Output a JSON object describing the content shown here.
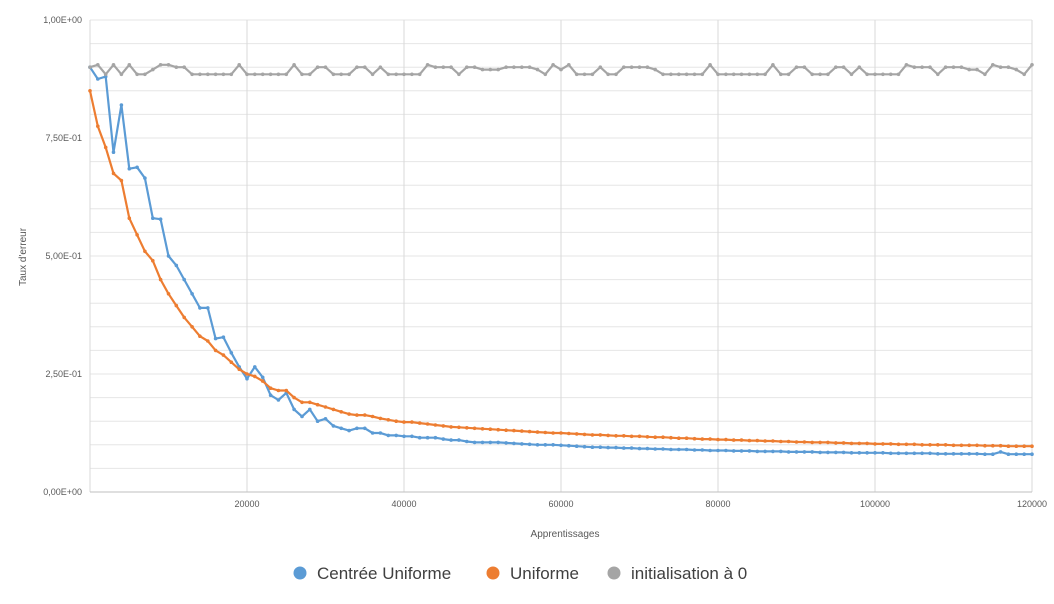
{
  "chart_data": {
    "type": "line",
    "title": "",
    "xlabel": "Apprentissages",
    "ylabel": "Taux d'erreur",
    "xlim": [
      0,
      120000
    ],
    "ylim": [
      0,
      1
    ],
    "grid": true,
    "legend_position": "bottom",
    "x_ticks": [
      {
        "value": 20000,
        "label": "20000"
      },
      {
        "value": 40000,
        "label": "40000"
      },
      {
        "value": 60000,
        "label": "60000"
      },
      {
        "value": 80000,
        "label": "80000"
      },
      {
        "value": 100000,
        "label": "100000"
      },
      {
        "value": 120000,
        "label": "120000"
      }
    ],
    "y_ticks": [
      {
        "value": 0,
        "label": "0,00E+00"
      },
      {
        "value": 0.25,
        "label": "2,50E-01"
      },
      {
        "value": 0.5,
        "label": "5,00E-01"
      },
      {
        "value": 0.75,
        "label": "7,50E-01"
      },
      {
        "value": 1.0,
        "label": "1,00E+00"
      }
    ],
    "x_start": 0,
    "x_step": 1000,
    "series": [
      {
        "name": "Centrée Uniforme",
        "color": "#5b9bd5",
        "values": [
          0.9,
          0.875,
          0.88,
          0.72,
          0.82,
          0.685,
          0.688,
          0.665,
          0.58,
          0.578,
          0.5,
          0.48,
          0.45,
          0.42,
          0.39,
          0.39,
          0.325,
          0.328,
          0.295,
          0.265,
          0.24,
          0.265,
          0.243,
          0.205,
          0.195,
          0.21,
          0.175,
          0.16,
          0.175,
          0.15,
          0.155,
          0.14,
          0.135,
          0.13,
          0.135,
          0.135,
          0.125,
          0.125,
          0.12,
          0.12,
          0.118,
          0.118,
          0.115,
          0.115,
          0.115,
          0.112,
          0.11,
          0.11,
          0.107,
          0.105,
          0.105,
          0.105,
          0.105,
          0.104,
          0.103,
          0.102,
          0.101,
          0.1,
          0.1,
          0.1,
          0.099,
          0.098,
          0.097,
          0.096,
          0.095,
          0.095,
          0.094,
          0.094,
          0.093,
          0.093,
          0.092,
          0.092,
          0.091,
          0.091,
          0.09,
          0.09,
          0.09,
          0.089,
          0.089,
          0.088,
          0.088,
          0.088,
          0.087,
          0.087,
          0.087,
          0.086,
          0.086,
          0.086,
          0.086,
          0.085,
          0.085,
          0.085,
          0.085,
          0.084,
          0.084,
          0.084,
          0.084,
          0.083,
          0.083,
          0.083,
          0.083,
          0.083,
          0.082,
          0.082,
          0.082,
          0.082,
          0.082,
          0.082,
          0.081,
          0.081,
          0.081,
          0.081,
          0.081,
          0.081,
          0.08,
          0.08,
          0.085,
          0.08,
          0.08,
          0.08,
          0.08
        ]
      },
      {
        "name": "Uniforme",
        "color": "#ed7d31",
        "values": [
          0.85,
          0.775,
          0.73,
          0.675,
          0.66,
          0.58,
          0.545,
          0.51,
          0.49,
          0.45,
          0.42,
          0.395,
          0.37,
          0.35,
          0.33,
          0.32,
          0.3,
          0.29,
          0.275,
          0.26,
          0.25,
          0.245,
          0.235,
          0.22,
          0.215,
          0.215,
          0.2,
          0.19,
          0.19,
          0.185,
          0.18,
          0.175,
          0.17,
          0.165,
          0.163,
          0.163,
          0.16,
          0.156,
          0.153,
          0.15,
          0.148,
          0.148,
          0.146,
          0.144,
          0.142,
          0.14,
          0.138,
          0.137,
          0.136,
          0.135,
          0.134,
          0.133,
          0.132,
          0.131,
          0.13,
          0.129,
          0.128,
          0.127,
          0.126,
          0.125,
          0.125,
          0.124,
          0.123,
          0.122,
          0.121,
          0.121,
          0.12,
          0.119,
          0.119,
          0.118,
          0.118,
          0.117,
          0.116,
          0.116,
          0.115,
          0.114,
          0.114,
          0.113,
          0.112,
          0.112,
          0.111,
          0.111,
          0.11,
          0.11,
          0.109,
          0.109,
          0.108,
          0.108,
          0.107,
          0.107,
          0.106,
          0.106,
          0.105,
          0.105,
          0.105,
          0.104,
          0.104,
          0.103,
          0.103,
          0.103,
          0.102,
          0.102,
          0.102,
          0.101,
          0.101,
          0.101,
          0.1,
          0.1,
          0.1,
          0.1,
          0.099,
          0.099,
          0.099,
          0.099,
          0.098,
          0.098,
          0.098,
          0.097,
          0.097,
          0.097,
          0.097
        ]
      },
      {
        "name": "initialisation à 0",
        "color": "#a5a5a5",
        "values": [
          0.9,
          0.905,
          0.885,
          0.905,
          0.885,
          0.905,
          0.885,
          0.885,
          0.895,
          0.905,
          0.905,
          0.9,
          0.9,
          0.885,
          0.885,
          0.885,
          0.885,
          0.885,
          0.885,
          0.905,
          0.885,
          0.885,
          0.885,
          0.885,
          0.885,
          0.885,
          0.905,
          0.885,
          0.885,
          0.9,
          0.9,
          0.885,
          0.885,
          0.885,
          0.9,
          0.9,
          0.885,
          0.9,
          0.885,
          0.885,
          0.885,
          0.885,
          0.885,
          0.905,
          0.9,
          0.9,
          0.9,
          0.885,
          0.9,
          0.9,
          0.895,
          0.895,
          0.895,
          0.9,
          0.9,
          0.9,
          0.9,
          0.895,
          0.885,
          0.905,
          0.895,
          0.905,
          0.885,
          0.885,
          0.885,
          0.9,
          0.885,
          0.885,
          0.9,
          0.9,
          0.9,
          0.9,
          0.895,
          0.885,
          0.885,
          0.885,
          0.885,
          0.885,
          0.885,
          0.905,
          0.885,
          0.885,
          0.885,
          0.885,
          0.885,
          0.885,
          0.885,
          0.905,
          0.885,
          0.885,
          0.9,
          0.9,
          0.885,
          0.885,
          0.885,
          0.9,
          0.9,
          0.885,
          0.9,
          0.885,
          0.885,
          0.885,
          0.885,
          0.885,
          0.905,
          0.9,
          0.9,
          0.9,
          0.885,
          0.9,
          0.9,
          0.9,
          0.895,
          0.895,
          0.885,
          0.905,
          0.9,
          0.9,
          0.895,
          0.885,
          0.905
        ]
      }
    ]
  }
}
